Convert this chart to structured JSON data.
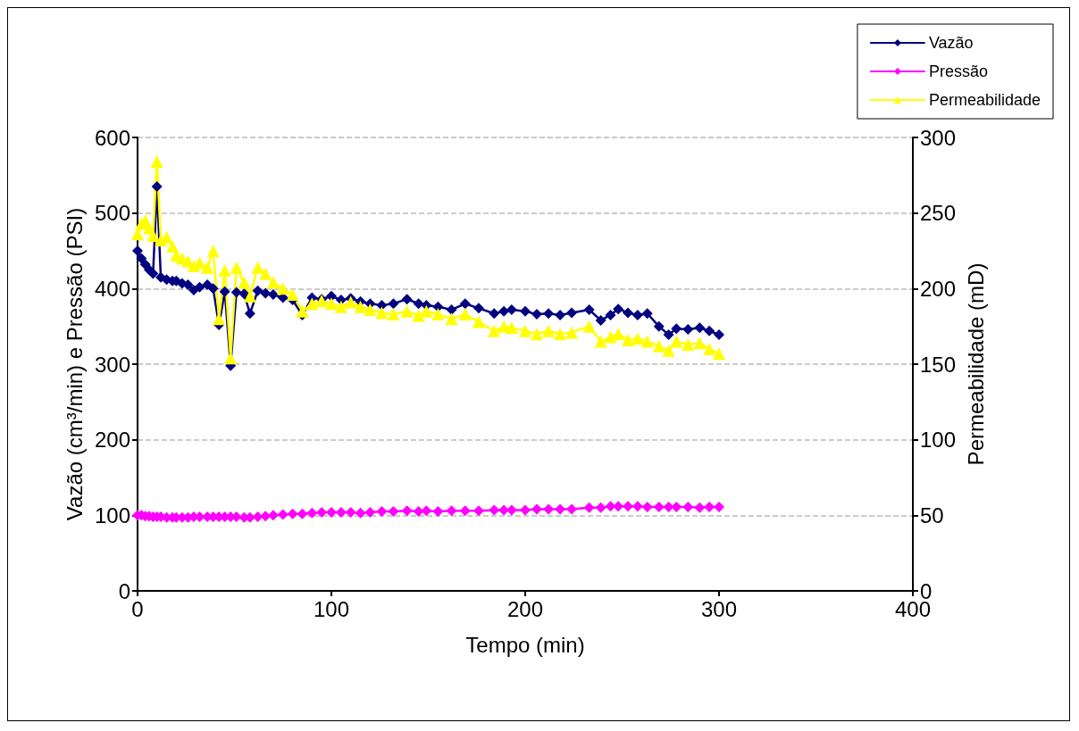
{
  "chart_data": {
    "type": "line",
    "xlabel": "Tempo (min)",
    "ylabel": "Vazão (cm³/min) e Pressão (PSI)",
    "y2label": "Permeabilidade (mD)",
    "x": [
      0,
      2,
      4,
      6,
      8,
      10,
      12,
      15,
      18,
      20,
      23,
      26,
      29,
      32,
      36,
      39,
      42,
      45,
      48,
      51,
      55,
      58,
      62,
      66,
      70,
      75,
      80,
      85,
      90,
      95,
      100,
      105,
      110,
      115,
      120,
      126,
      132,
      139,
      145,
      149,
      155,
      162,
      169,
      176,
      184,
      189,
      193,
      200,
      206,
      212,
      218,
      224,
      233,
      239,
      244,
      248,
      253,
      258,
      263,
      269,
      274,
      278,
      284,
      290,
      295,
      300
    ],
    "series": [
      {
        "name": "Vazão",
        "color": "#000080",
        "marker": "diamond",
        "values": [
          450,
          440,
          432,
          425,
          420,
          535,
          415,
          412,
          410,
          410,
          407,
          405,
          398,
          402,
          405,
          400,
          352,
          396,
          298,
          395,
          393,
          367,
          397,
          394,
          392,
          388,
          385,
          365,
          388,
          386,
          390,
          385,
          387,
          383,
          380,
          378,
          380,
          386,
          380,
          378,
          376,
          372,
          380,
          374,
          367,
          370,
          372,
          370,
          366,
          367,
          365,
          368,
          372,
          358,
          365,
          373,
          368,
          365,
          367,
          350,
          339,
          347,
          346,
          348,
          344,
          339
        ]
      },
      {
        "name": "Pressão",
        "color": "#ff00ff",
        "marker": "diamond",
        "values": [
          100,
          100,
          99,
          99,
          98,
          98,
          98,
          97,
          97,
          97,
          97,
          97,
          98,
          98,
          98,
          98,
          98,
          98,
          98,
          98,
          97,
          97,
          98,
          99,
          100,
          101,
          102,
          102,
          103,
          104,
          104,
          104,
          104,
          103,
          104,
          105,
          105,
          106,
          105,
          106,
          105,
          106,
          106,
          106,
          107,
          107,
          107,
          107,
          108,
          108,
          108,
          108,
          110,
          110,
          112,
          112,
          112,
          112,
          111,
          111,
          111,
          111,
          111,
          110,
          111,
          111
        ]
      },
      {
        "name": "Permeabilidade",
        "color": "#ffff00",
        "marker": "triangle",
        "axis": "y2",
        "values": [
          236,
          243,
          245,
          240,
          235,
          284,
          232,
          234,
          228,
          222,
          220,
          218,
          215,
          217,
          214,
          225,
          180,
          212,
          154,
          214,
          204,
          195,
          214,
          210,
          204,
          200,
          196,
          185,
          190,
          192,
          190,
          188,
          191,
          188,
          186,
          184,
          183,
          185,
          182,
          185,
          183,
          180,
          183,
          178,
          172,
          175,
          174,
          172,
          170,
          172,
          170,
          171,
          175,
          165,
          168,
          170,
          166,
          167,
          165,
          162,
          159,
          165,
          163,
          164,
          160,
          157
        ]
      }
    ],
    "xlim": [
      0,
      400
    ],
    "xticks": [
      0,
      100,
      200,
      300,
      400
    ],
    "ylim": [
      0,
      600
    ],
    "yticks": [
      0,
      100,
      200,
      300,
      400,
      500,
      600
    ],
    "y2lim": [
      0,
      300
    ],
    "y2ticks": [
      0,
      50,
      100,
      150,
      200,
      250,
      300
    ],
    "grid": "y",
    "legend": "top right",
    "line_style": "solid"
  }
}
